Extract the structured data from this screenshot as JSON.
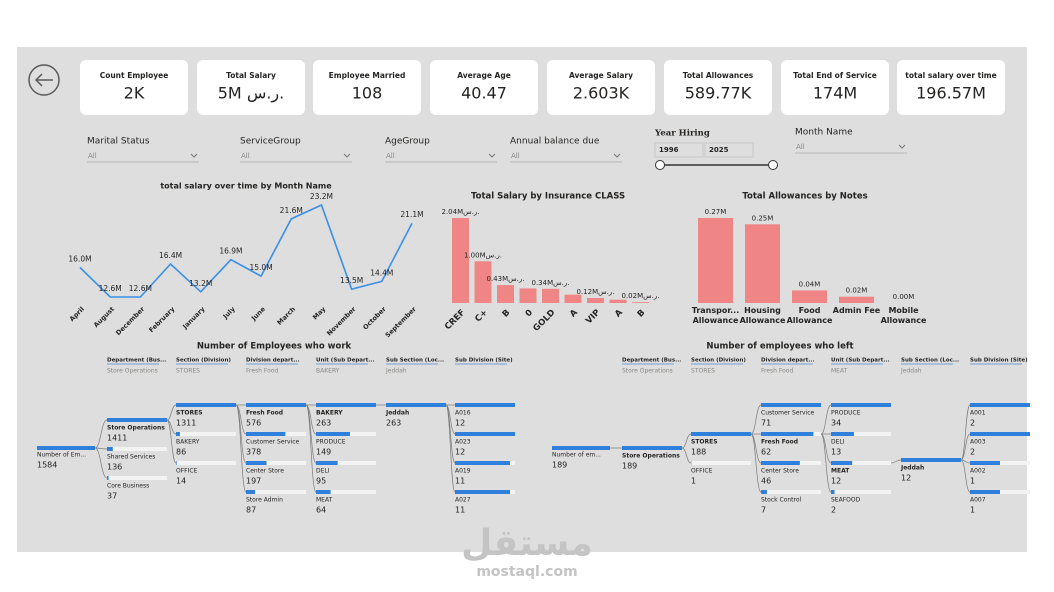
{
  "cards": [
    {
      "label": "Count Employee",
      "value": "2K"
    },
    {
      "label": "Total Salary",
      "value": "5M ر.س."
    },
    {
      "label": "Employee Married",
      "value": "108"
    },
    {
      "label": "Average Age",
      "value": "40.47"
    },
    {
      "label": "Average Salary",
      "value": "2.603K"
    },
    {
      "label": "Total Allowances",
      "value": "589.77K"
    },
    {
      "label": "Total End of Service",
      "value": "174M"
    },
    {
      "label": "total salary over time",
      "value": "196.57M"
    }
  ],
  "filters": [
    {
      "label": "Marital Status",
      "value": "All"
    },
    {
      "label": "ServiceGroup",
      "value": "All"
    },
    {
      "label": "AgeGroup",
      "value": "All"
    },
    {
      "label": "Annual balance due",
      "value": "All"
    },
    {
      "label": "Month Name",
      "value": "All"
    }
  ],
  "year_hiring": {
    "label": "Year Hiring",
    "from": 1996,
    "to": 2025
  },
  "chart_data": [
    {
      "type": "line",
      "title": "total salary over time by Month Name",
      "categories": [
        "April",
        "August",
        "December",
        "February",
        "January",
        "July",
        "June",
        "March",
        "May",
        "November",
        "October",
        "September"
      ],
      "values": [
        16.0,
        12.6,
        12.6,
        16.4,
        13.2,
        16.9,
        15.0,
        21.6,
        23.2,
        13.5,
        14.4,
        21.1
      ],
      "value_labels": [
        "16.0M",
        "12.6M",
        "12.6M",
        "16.4M",
        "13.2M",
        "16.9M",
        "15.0M",
        "21.6M",
        "23.2M",
        "13.5M",
        "14.4M",
        "21.1M"
      ],
      "color": "#3a8fe8"
    },
    {
      "type": "bar",
      "title": "Total Salary by Insurance CLASS",
      "categories": [
        "CREF",
        "C+",
        "B",
        "0",
        "GOLD",
        "A",
        "VIP",
        "A",
        "B"
      ],
      "values": [
        2.04,
        1.0,
        0.43,
        0.35,
        0.34,
        0.2,
        0.12,
        0.08,
        0.02
      ],
      "value_labels": [
        "2.04Mر.س.",
        "1.00Mر.س.",
        "0.43Mر.س.",
        null,
        "0.34Mر.س.",
        null,
        "0.12Mر.س.",
        null,
        "0.02Mر.س."
      ],
      "color": "#f08585"
    },
    {
      "type": "bar",
      "title": "Total Allowances by Notes",
      "categories": [
        "Transpor... Allowance",
        "Housing Allowance",
        "Food Allowance",
        "Admin Fee",
        "Mobile Allowance"
      ],
      "values": [
        0.27,
        0.25,
        0.04,
        0.02,
        0.0
      ],
      "value_labels": [
        "0.27M",
        "0.25M",
        "0.04M",
        "0.02M",
        "0.00M"
      ],
      "color": "#f08585"
    }
  ],
  "trees": [
    {
      "title": "Number of Employees who work",
      "headers": [
        "Department (Bus...",
        "Section (Division)",
        "Division depart...",
        "Unit (Sub Depart...",
        "Sub Section (Loc...",
        "Sub Division (Site)"
      ],
      "root": {
        "label": "Number of Em...",
        "value": 1584
      },
      "levels": [
        {
          "selected": 0,
          "nodes": [
            {
              "label": "Store Operations",
              "value": 1411
            },
            {
              "label": "Shared Services",
              "value": 136
            },
            {
              "label": "Core Business",
              "value": 37
            }
          ]
        },
        {
          "selected": 0,
          "nodes": [
            {
              "label": "STORES",
              "value": 1311
            },
            {
              "label": "BAKERY",
              "value": 86
            },
            {
              "label": "OFFICE",
              "value": 14
            }
          ]
        },
        {
          "selected": 0,
          "nodes": [
            {
              "label": "Fresh Food",
              "value": 576
            },
            {
              "label": "Customer Service",
              "value": 378
            },
            {
              "label": "Center Store",
              "value": 197
            },
            {
              "label": "Store Admin",
              "value": 87
            }
          ]
        },
        {
          "selected": 0,
          "nodes": [
            {
              "label": "BAKERY",
              "value": 263
            },
            {
              "label": "PRODUCE",
              "value": 149
            },
            {
              "label": "DELI",
              "value": 95
            },
            {
              "label": "MEAT",
              "value": 64
            }
          ]
        },
        {
          "selected": 0,
          "nodes": [
            {
              "label": "Jeddah",
              "value": 263
            }
          ]
        },
        {
          "nodes": [
            {
              "label": "A016",
              "value": 12
            },
            {
              "label": "A023",
              "value": 12
            },
            {
              "label": "A019",
              "value": 11
            },
            {
              "label": "A027",
              "value": 11
            }
          ]
        }
      ]
    },
    {
      "title": "Number of employees who left",
      "headers": [
        "Department (Bus...",
        "Section (Division)",
        "Division depart...",
        "Unit (Sub Depart...",
        "Sub Section (Loc...",
        "Sub Division (Site)"
      ],
      "root": {
        "label": "Number of em...",
        "value": 189
      },
      "levels": [
        {
          "selected": 0,
          "nodes": [
            {
              "label": "Store Operations",
              "value": 189
            }
          ]
        },
        {
          "selected": 0,
          "nodes": [
            {
              "label": "STORES",
              "value": 188
            },
            {
              "label": "OFFICE",
              "value": 1
            }
          ]
        },
        {
          "selected": 1,
          "nodes": [
            {
              "label": "Customer Service",
              "value": 71
            },
            {
              "label": "Fresh Food",
              "value": 62
            },
            {
              "label": "Center Store",
              "value": 46
            },
            {
              "label": "Stock Control",
              "value": 7
            }
          ]
        },
        {
          "selected": 2,
          "nodes": [
            {
              "label": "PRODUCE",
              "value": 34
            },
            {
              "label": "DELI",
              "value": 13
            },
            {
              "label": "MEAT",
              "value": 12
            },
            {
              "label": "SEAFOOD",
              "value": 2
            }
          ]
        },
        {
          "selected": 0,
          "nodes": [
            {
              "label": "Jeddah",
              "value": 12
            }
          ]
        },
        {
          "nodes": [
            {
              "label": "A001",
              "value": 2
            },
            {
              "label": "A003",
              "value": 2
            },
            {
              "label": "A002",
              "value": 1
            },
            {
              "label": "A007",
              "value": 1
            }
          ]
        }
      ]
    }
  ],
  "watermark": {
    "arabic": "مستقل",
    "latin": "mostaql.com"
  }
}
